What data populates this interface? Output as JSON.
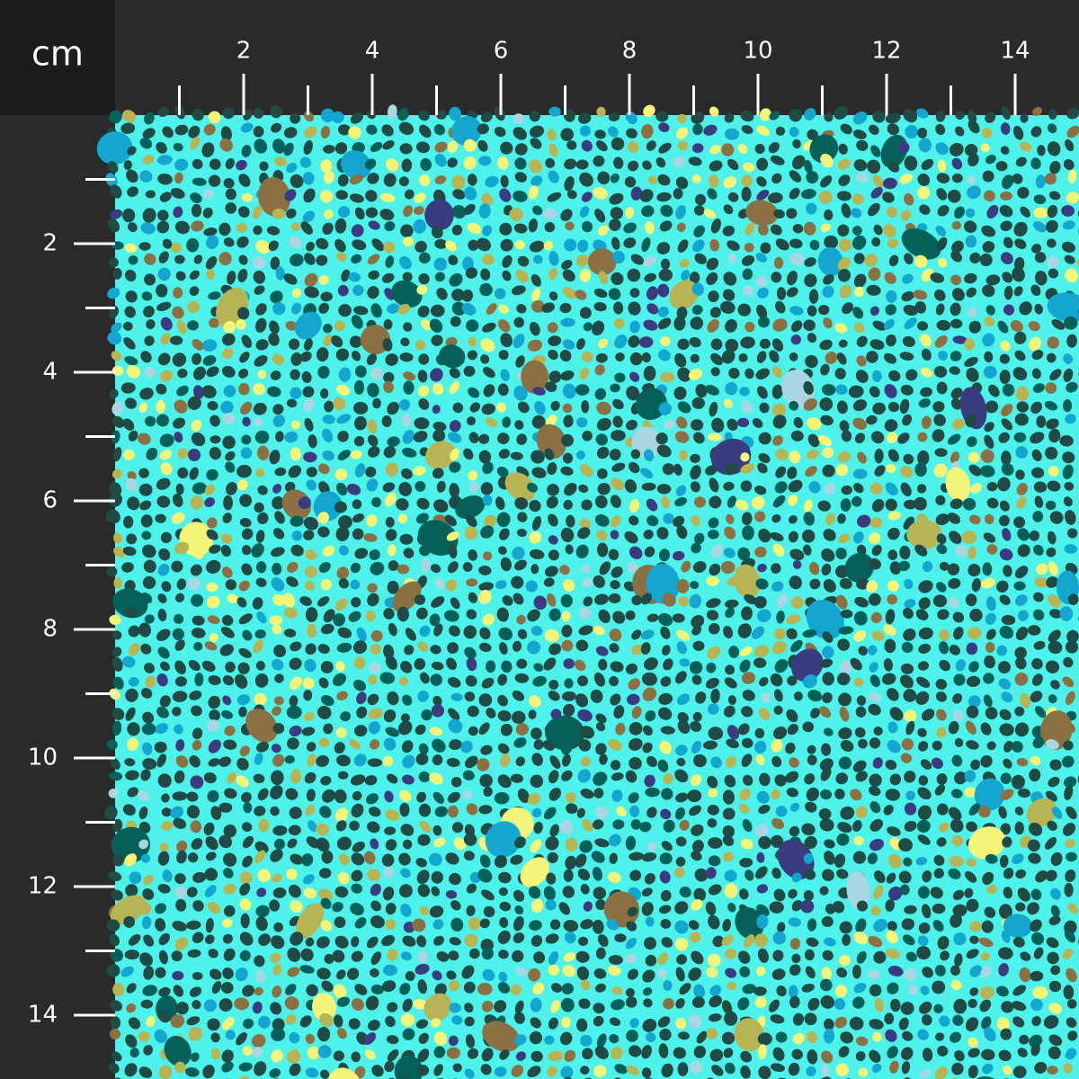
{
  "ruler": {
    "unit": "cm",
    "top_ticks": [
      2,
      4,
      6,
      8,
      10,
      12,
      14
    ],
    "left_ticks": [
      2,
      4,
      6,
      8,
      10,
      12,
      14
    ]
  }
}
